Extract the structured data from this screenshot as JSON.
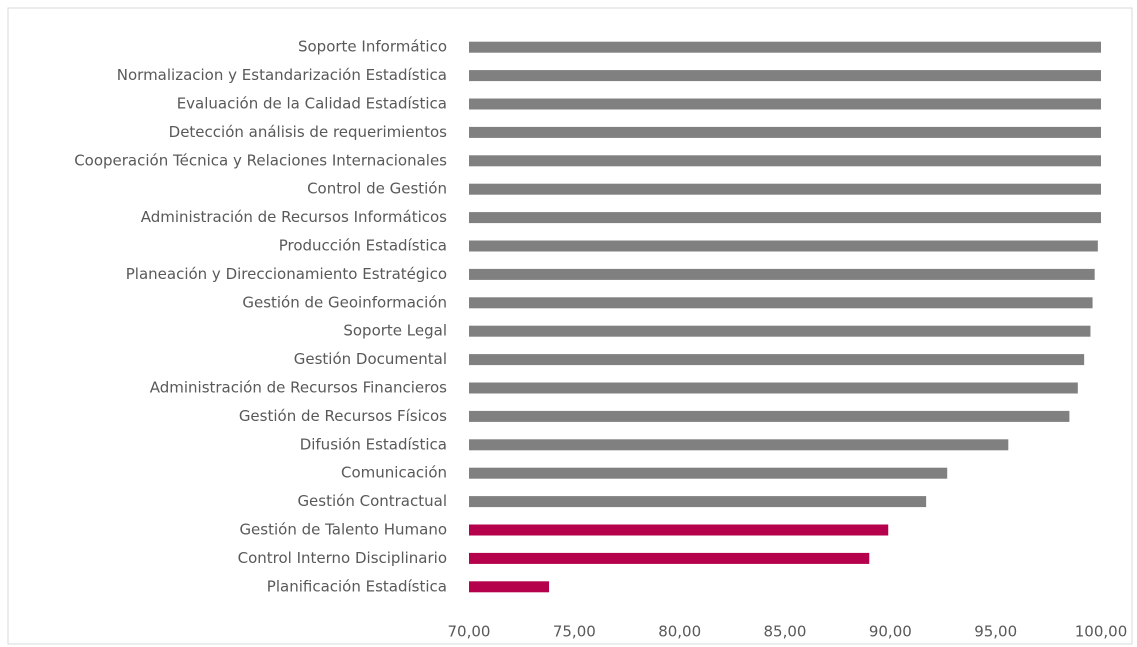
{
  "chart_data": {
    "type": "hbar",
    "categories": [
      "Soporte Informático",
      "Normalizacion y Estandarización Estadística",
      "Evaluación de la Calidad Estadística",
      "Detección análisis de requerimientos",
      "Cooperación Técnica y Relaciones Internacionales",
      "Control de Gestión",
      "Administración de Recursos Informáticos",
      "Producción Estadística",
      "Planeación y Direccionamiento Estratégico",
      "Gestión de Geoinformación",
      "Soporte Legal",
      "Gestión Documental",
      "Administración de Recursos Financieros",
      "Gestión de Recursos Físicos",
      "Difusión Estadística",
      "Comunicación",
      "Gestión Contractual",
      "Gestión de Talento Humano",
      "Control Interno Disciplinario",
      "Planificación Estadística"
    ],
    "values": [
      100,
      100,
      100,
      100,
      100,
      100,
      100,
      99.85,
      99.7,
      99.6,
      99.5,
      99.2,
      98.9,
      98.5,
      95.6,
      92.7,
      91.7,
      89.9,
      89.0,
      73.8
    ],
    "colors": [
      "#808080",
      "#808080",
      "#808080",
      "#808080",
      "#808080",
      "#808080",
      "#808080",
      "#808080",
      "#808080",
      "#808080",
      "#808080",
      "#808080",
      "#808080",
      "#808080",
      "#808080",
      "#808080",
      "#808080",
      "#b5004b",
      "#b5004b",
      "#b5004b"
    ],
    "xlim": [
      70,
      100
    ],
    "xticks": [
      {
        "value": 70,
        "label": "70,00"
      },
      {
        "value": 75,
        "label": "75,00"
      },
      {
        "value": 80,
        "label": "80,00"
      },
      {
        "value": 85,
        "label": "85,00"
      },
      {
        "value": 90,
        "label": "90,00"
      },
      {
        "value": 95,
        "label": "95,00"
      },
      {
        "value": 100,
        "label": "100,00"
      }
    ],
    "grid": false
  }
}
